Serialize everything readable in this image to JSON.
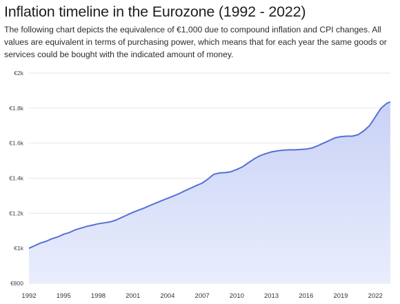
{
  "header": {
    "title": "Inflation timeline in the Eurozone (1992 - 2022)",
    "subtitle": "The following chart depicts the equivalence of €1,000 due to compound inflation and CPI changes. All values are equivalent in terms of purchasing power, which means that for each year the same goods or services could be bought with the indicated amount of money."
  },
  "chart_data": {
    "type": "area",
    "title": "Inflation timeline in the Eurozone (1992 - 2022)",
    "xlabel": "",
    "ylabel": "",
    "xlim": [
      1992,
      2023.3
    ],
    "ylim": [
      800,
      2000
    ],
    "y_ticks": [
      {
        "value": 2000,
        "label": "€2k"
      },
      {
        "value": 1800,
        "label": "€1.8k"
      },
      {
        "value": 1600,
        "label": "€1.6k"
      },
      {
        "value": 1400,
        "label": "€1.4k"
      },
      {
        "value": 1200,
        "label": "€1.2k"
      },
      {
        "value": 1000,
        "label": "€1k"
      },
      {
        "value": 800,
        "label": "€800"
      }
    ],
    "x_ticks": [
      {
        "value": 1992,
        "label": "1992"
      },
      {
        "value": 1995,
        "label": "1995"
      },
      {
        "value": 1998,
        "label": "1998"
      },
      {
        "value": 2001,
        "label": "2001"
      },
      {
        "value": 2004,
        "label": "2004"
      },
      {
        "value": 2007,
        "label": "2007"
      },
      {
        "value": 2010,
        "label": "2010"
      },
      {
        "value": 2013,
        "label": "2013"
      },
      {
        "value": 2016,
        "label": "2016"
      },
      {
        "value": 2019,
        "label": "2019"
      },
      {
        "value": 2022,
        "label": "2022"
      }
    ],
    "grid": true,
    "legend": "none",
    "colors": {
      "line": "#5470d6",
      "fill_top": "#c9d2f7",
      "fill_bottom": "#e9edfc",
      "grid": "#e6e6e6"
    },
    "series": [
      {
        "x": [
          1992,
          1992.5,
          1993,
          1993.5,
          1994,
          1994.5,
          1995,
          1995.5,
          1996,
          1996.5,
          1997,
          1997.5,
          1998,
          1998.5,
          1999,
          1999.5,
          2000,
          2000.5,
          2001,
          2001.5,
          2002,
          2002.5,
          2003,
          2003.5,
          2004,
          2004.5,
          2005,
          2005.5,
          2006,
          2006.5,
          2007,
          2007.5,
          2008,
          2008.5,
          2009,
          2009.5,
          2010,
          2010.5,
          2011,
          2011.5,
          2012,
          2012.5,
          2013,
          2013.5,
          2014,
          2014.5,
          2015,
          2015.5,
          2016,
          2016.5,
          2017,
          2017.5,
          2018,
          2018.5,
          2019,
          2019.5,
          2020,
          2020.5,
          2021,
          2021.5,
          2022,
          2022.5,
          2023,
          2023.3
        ],
        "values": [
          1000,
          1015,
          1030,
          1040,
          1055,
          1065,
          1080,
          1090,
          1105,
          1115,
          1125,
          1132,
          1140,
          1145,
          1150,
          1160,
          1175,
          1190,
          1205,
          1218,
          1230,
          1245,
          1258,
          1272,
          1285,
          1298,
          1312,
          1328,
          1343,
          1358,
          1372,
          1395,
          1422,
          1430,
          1432,
          1437,
          1450,
          1465,
          1488,
          1510,
          1528,
          1540,
          1550,
          1556,
          1560,
          1562,
          1562,
          1564,
          1566,
          1572,
          1585,
          1600,
          1615,
          1630,
          1637,
          1640,
          1640,
          1648,
          1670,
          1700,
          1750,
          1800,
          1828,
          1835
        ]
      }
    ]
  }
}
